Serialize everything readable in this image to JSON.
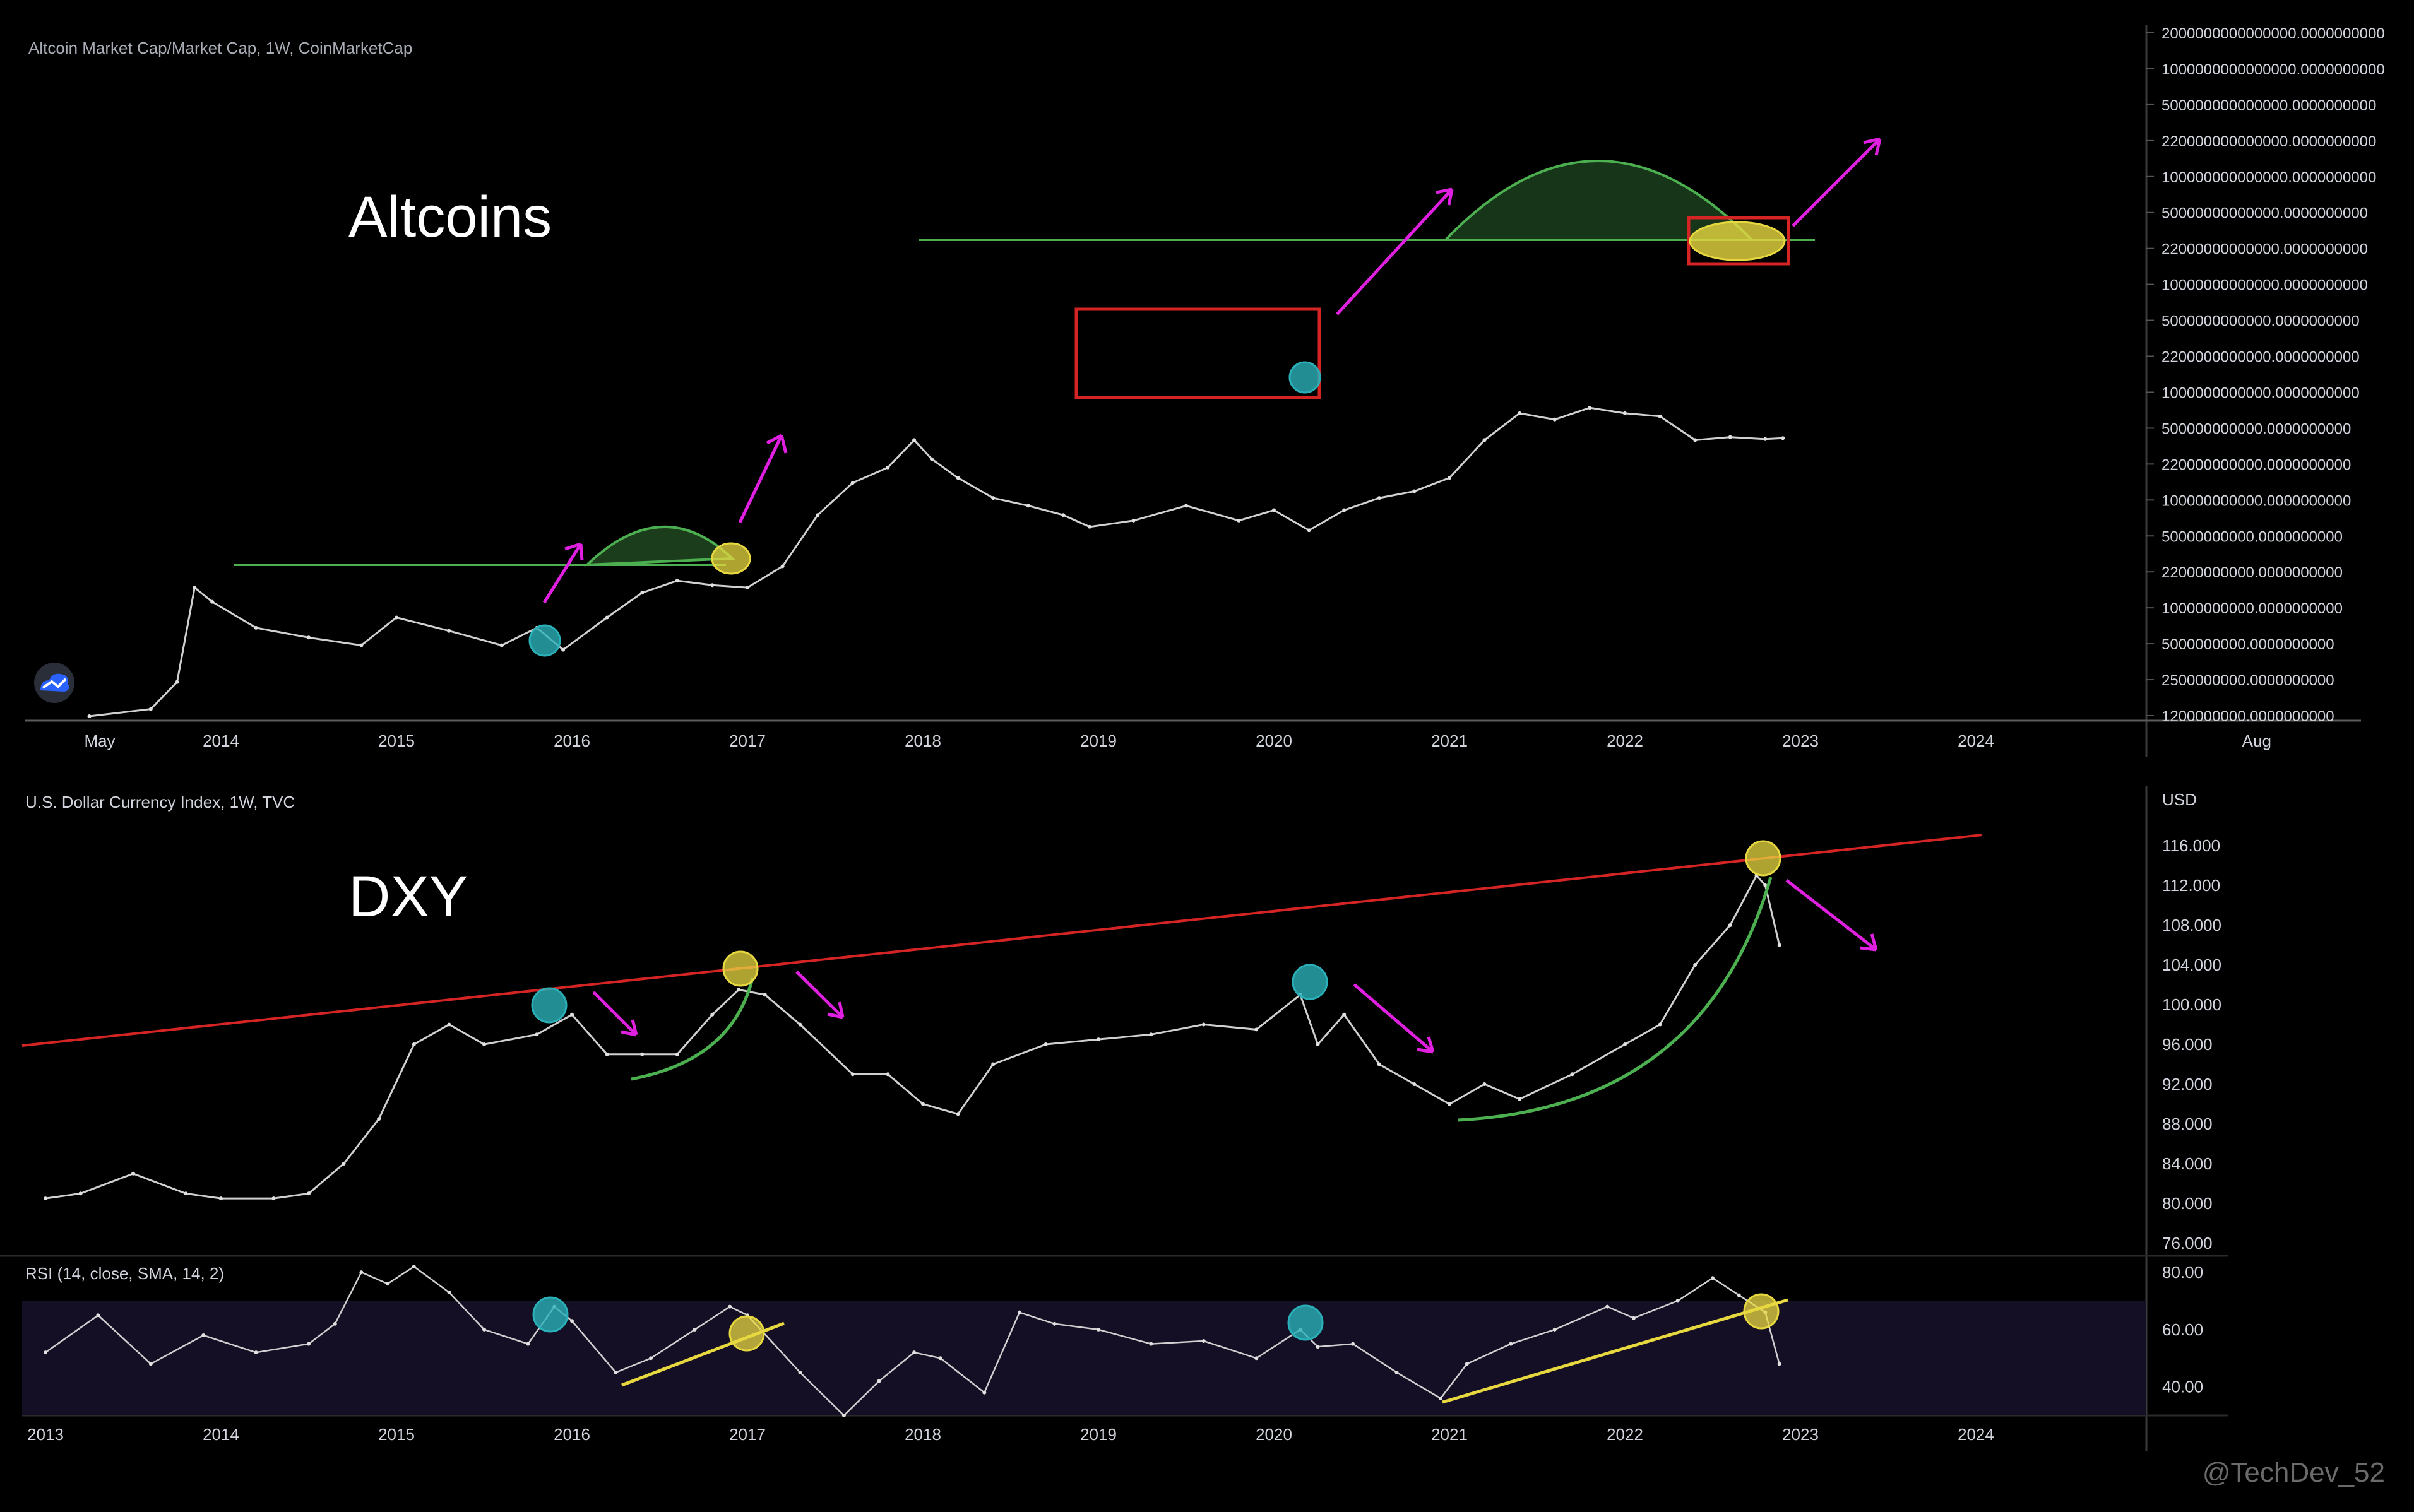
{
  "watermark": "@TechDev_52",
  "colors": {
    "background": "#000000",
    "candle": "#d0d0d0",
    "green": "#4caf50",
    "red": "#d42424",
    "magenta": "#e020e0",
    "yellow": "#e8d840",
    "cyan": "#2ab0b8",
    "axis_text": "#d1d4dc",
    "rsi_band": "#140f24"
  },
  "panels": {
    "altcoins": {
      "header": "Altcoin Market Cap/Market Cap, 1W, CoinMarketCap",
      "overlay_title": "Altcoins",
      "logo_icon": "tradingview-cloud-icon"
    },
    "dxy": {
      "header": "U.S. Dollar Currency Index, 1W, TVC",
      "overlay_title": "DXY",
      "currency": "USD"
    },
    "rsi": {
      "header": "RSI (14, close, SMA, 14, 2)"
    }
  },
  "chart_data": [
    {
      "type": "line",
      "id": "altcoin-market-cap",
      "scale": "log",
      "x_tick_labels": [
        "May",
        "2014",
        "2015",
        "2016",
        "2017",
        "2018",
        "2019",
        "2020",
        "2021",
        "2022",
        "2023",
        "2024",
        "Aug"
      ],
      "y_tick_labels": [
        "2000000000000000.0000000000",
        "1000000000000000.0000000000",
        "500000000000000.0000000000",
        "220000000000000.0000000000",
        "100000000000000.0000000000",
        "50000000000000.0000000000",
        "22000000000000.0000000000",
        "10000000000000.0000000000",
        "5000000000000.0000000000",
        "2200000000000.0000000000",
        "1000000000000.0000000000",
        "500000000000.0000000000",
        "220000000000.0000000000",
        "100000000000.0000000000",
        "50000000000.0000000000",
        "22000000000.0000000000",
        "10000000000.0000000000",
        "5000000000.0000000000",
        "2500000000.0000000000",
        "1200000000.0000000000"
      ],
      "series": [
        {
          "x": [
            2013.25,
            2013.6,
            2013.75,
            2013.85,
            2013.95,
            2014.2,
            2014.5,
            2014.8,
            2015.0,
            2015.3,
            2015.6,
            2015.8,
            2015.95,
            2016.2,
            2016.4,
            2016.6,
            2016.8,
            2017.0,
            2017.2,
            2017.4,
            2017.6,
            2017.8,
            2017.95,
            2018.05,
            2018.2,
            2018.4,
            2018.6,
            2018.8,
            2018.95,
            2019.2,
            2019.5,
            2019.8,
            2020.0,
            2020.2,
            2020.4,
            2020.6,
            2020.8,
            2021.0,
            2021.2,
            2021.4,
            2021.6,
            2021.8,
            2022.0,
            2022.2,
            2022.4,
            2022.6,
            2022.8,
            2022.9
          ],
          "y": [
            1200000000,
            1400000000,
            2500000000,
            19000000000,
            14000000000,
            8000000000,
            6500000000,
            5500000000,
            10000000000,
            7500000000,
            5500000000,
            8000000000,
            5000000000,
            10000000000,
            17000000000,
            22000000000,
            20000000000,
            19000000000,
            30000000000,
            90000000000,
            180000000000,
            250000000000,
            450000000000,
            300000000000,
            200000000000,
            130000000000,
            110000000000,
            90000000000,
            70000000000,
            80000000000,
            110000000000,
            80000000000,
            100000000000,
            65000000000,
            100000000000,
            130000000000,
            150000000000,
            200000000000,
            450000000000,
            800000000000,
            700000000000,
            900000000000,
            800000000000,
            750000000000,
            450000000000,
            480000000000,
            460000000000,
            470000000000
          ]
        }
      ]
    },
    {
      "type": "line",
      "id": "dxy",
      "y_tick_labels": [
        "116.000",
        "112.000",
        "108.000",
        "104.000",
        "100.000",
        "96.000",
        "92.000",
        "88.000",
        "84.000",
        "80.000",
        "76.000"
      ],
      "ylim": [
        76,
        116
      ],
      "series": [
        {
          "x": [
            2013.0,
            2013.2,
            2013.5,
            2013.8,
            2014.0,
            2014.3,
            2014.5,
            2014.7,
            2014.9,
            2015.1,
            2015.3,
            2015.5,
            2015.8,
            2016.0,
            2016.2,
            2016.4,
            2016.6,
            2016.8,
            2016.95,
            2017.1,
            2017.3,
            2017.6,
            2017.8,
            2018.0,
            2018.2,
            2018.4,
            2018.7,
            2019.0,
            2019.3,
            2019.6,
            2019.9,
            2020.15,
            2020.25,
            2020.4,
            2020.6,
            2020.8,
            2021.0,
            2021.2,
            2021.4,
            2021.7,
            2022.0,
            2022.2,
            2022.4,
            2022.6,
            2022.75,
            2022.8,
            2022.88
          ],
          "y": [
            80.5,
            81,
            83,
            81,
            80.5,
            80.5,
            81,
            84,
            88.5,
            96,
            98,
            96,
            97,
            99,
            95,
            95,
            95,
            99,
            101.5,
            101,
            98,
            93,
            93,
            90,
            89,
            94,
            96,
            96.5,
            97,
            98,
            97.5,
            101,
            96,
            99,
            94,
            92,
            90,
            92,
            90.5,
            93,
            96,
            98,
            104,
            108,
            113,
            112,
            106
          ]
        }
      ]
    },
    {
      "type": "line",
      "id": "rsi",
      "y_tick_labels": [
        "80.00",
        "60.00",
        "40.00"
      ],
      "ylim": [
        30,
        84
      ],
      "band": [
        30,
        70
      ],
      "series": [
        {
          "x": [
            2013.0,
            2013.3,
            2013.6,
            2013.9,
            2014.2,
            2014.5,
            2014.65,
            2014.8,
            2014.95,
            2015.1,
            2015.3,
            2015.5,
            2015.75,
            2015.9,
            2016.0,
            2016.25,
            2016.45,
            2016.7,
            2016.9,
            2017.0,
            2017.3,
            2017.55,
            2017.75,
            2017.95,
            2018.1,
            2018.35,
            2018.55,
            2018.75,
            2019.0,
            2019.3,
            2019.6,
            2019.9,
            2020.15,
            2020.25,
            2020.45,
            2020.7,
            2020.95,
            2021.1,
            2021.35,
            2021.6,
            2021.9,
            2022.05,
            2022.3,
            2022.5,
            2022.65,
            2022.8,
            2022.88
          ],
          "y": [
            52,
            65,
            48,
            58,
            52,
            55,
            62,
            80,
            76,
            82,
            73,
            60,
            55,
            68,
            63,
            45,
            50,
            60,
            68,
            65,
            45,
            30,
            42,
            52,
            50,
            38,
            66,
            62,
            60,
            55,
            56,
            50,
            60,
            54,
            55,
            45,
            36,
            48,
            55,
            60,
            68,
            64,
            70,
            78,
            72,
            66,
            48
          ]
        }
      ]
    }
  ],
  "x_axis_bottom": [
    "2013",
    "2014",
    "2015",
    "2016",
    "2017",
    "2018",
    "2019",
    "2020",
    "2021",
    "2022",
    "2023",
    "2024"
  ]
}
